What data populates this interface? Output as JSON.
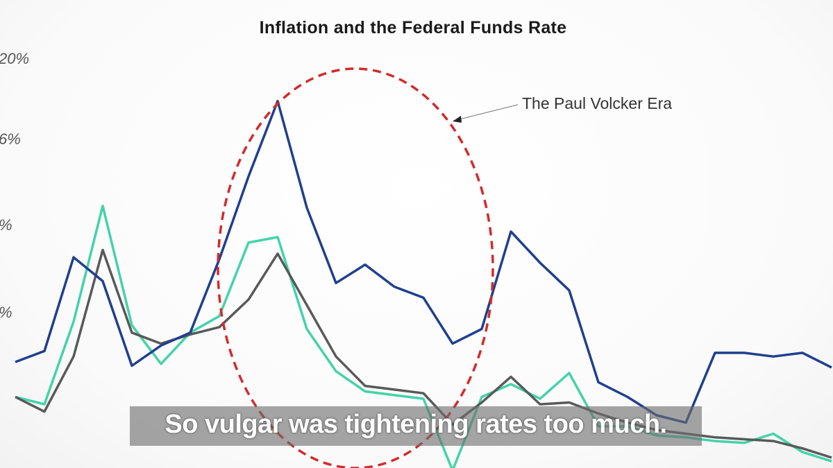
{
  "chart_data": {
    "type": "line",
    "title": "Inflation and the Federal Funds Rate",
    "annotation": "The Paul Volcker Era",
    "y_tick_labels": [
      "20%",
      "6%",
      "%",
      "%"
    ],
    "x": [
      0,
      1,
      2,
      3,
      4,
      5,
      6,
      7,
      8,
      9,
      10,
      11,
      12,
      13,
      14,
      15,
      16,
      17,
      18,
      19,
      20,
      21,
      22,
      23,
      24,
      25,
      26,
      27,
      28
    ],
    "ylim": [
      -2,
      22
    ],
    "grid": false,
    "legend": "none",
    "series": [
      {
        "color": "#1f3f8f",
        "values": [
          4.9,
          5.5,
          10.6,
          9.3,
          4.7,
          5.8,
          6.5,
          10.5,
          15.0,
          19.1,
          13.3,
          9.2,
          10.2,
          9.0,
          8.4,
          5.9,
          6.7,
          12.0,
          10.3,
          8.8,
          3.8,
          3.0,
          2.0,
          1.6,
          5.4,
          5.4,
          5.2,
          5.4,
          4.6
        ]
      },
      {
        "color": "#43d3a8",
        "values": [
          3.0,
          2.6,
          7.1,
          13.4,
          6.9,
          4.8,
          6.5,
          7.4,
          11.4,
          11.7,
          6.7,
          4.4,
          3.3,
          3.1,
          2.9,
          -1.0,
          3.0,
          3.7,
          2.9,
          4.3,
          1.4,
          1.4,
          0.9,
          0.8,
          0.6,
          0.5,
          1.0,
          0.0,
          -0.5
        ]
      },
      {
        "color": "#595959",
        "values": [
          3.0,
          2.2,
          5.2,
          11.0,
          6.5,
          5.9,
          6.4,
          6.8,
          8.3,
          10.8,
          8.0,
          5.2,
          3.6,
          3.4,
          3.2,
          1.5,
          2.7,
          4.1,
          2.6,
          2.7,
          2.1,
          1.6,
          1.2,
          1.0,
          0.8,
          0.7,
          0.6,
          0.2,
          -0.3
        ]
      }
    ]
  },
  "caption": {
    "text": "So vulgar was tightening rates too much."
  },
  "highlight": {
    "color": "#d22b2b"
  }
}
